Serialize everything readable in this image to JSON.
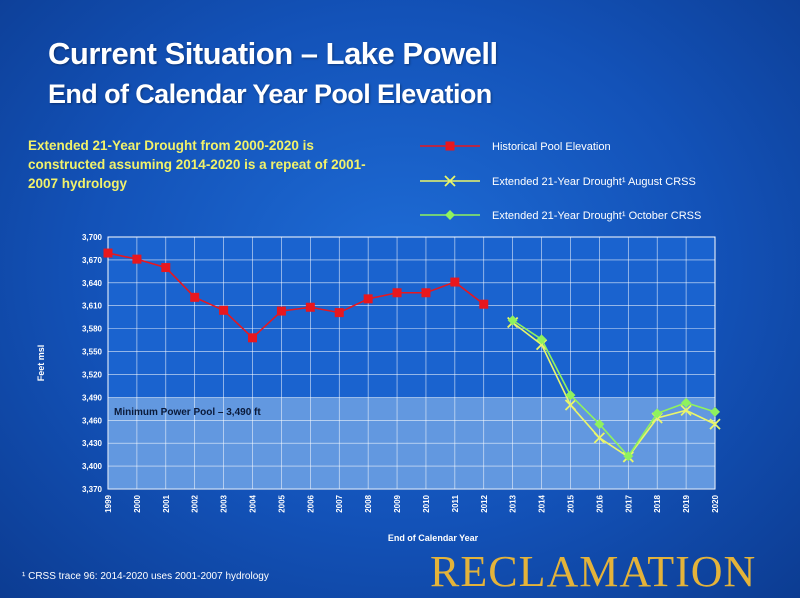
{
  "slide": {
    "title": "Current Situation – Lake Powell",
    "subtitle": "End of Calendar Year Pool Elevation",
    "note": "Extended 21-Year Drought from 2000-2020 is constructed assuming 2014-2020 is a repeat of 2001-2007 hydrology",
    "footnote": "¹ CRSS trace 96: 2014-2020 uses 2001-2007 hydrology",
    "brand": "RECLAMATION"
  },
  "colors": {
    "historical": "#e8171e",
    "august": "#eaf66a",
    "october": "#8ff25e",
    "band": "#9ec4ee",
    "grid": "#ffffff",
    "plot_bg": "#1a63cf"
  },
  "chart_data": {
    "type": "line",
    "xlabel": "End of Calendar Year",
    "ylabel": "Feet msl",
    "ylim": [
      3370,
      3700
    ],
    "yticks": [
      3370,
      3400,
      3430,
      3460,
      3490,
      3520,
      3550,
      3580,
      3610,
      3640,
      3670,
      3700
    ],
    "ytick_labels": [
      "3,370",
      "3,400",
      "3,430",
      "3,460",
      "3,490",
      "3,520",
      "3,550",
      "3,580",
      "3,610",
      "3,640",
      "3,670",
      "3,700"
    ],
    "x": [
      "1999",
      "2000",
      "2001",
      "2002",
      "2003",
      "2004",
      "2005",
      "2006",
      "2007",
      "2008",
      "2009",
      "2010",
      "2011",
      "2012",
      "2013",
      "2014",
      "2015",
      "2016",
      "2017",
      "2018",
      "2019",
      "2020"
    ],
    "grid": true,
    "legend_position": "top-right",
    "series": [
      {
        "name": "Historical Pool Elevation",
        "marker": "square",
        "color": "#e8171e",
        "x": [
          "1999",
          "2000",
          "2001",
          "2002",
          "2003",
          "2004",
          "2005",
          "2006",
          "2007",
          "2008",
          "2009",
          "2010",
          "2011",
          "2012"
        ],
        "values": [
          3679,
          3671,
          3660,
          3621,
          3604,
          3568,
          3603,
          3608,
          3601,
          3619,
          3627,
          3627,
          3641,
          3612
        ]
      },
      {
        "name": "Extended 21-Year Drought¹ August CRSS",
        "marker": "x",
        "color": "#eaf66a",
        "x": [
          "2013",
          "2014",
          "2015",
          "2016",
          "2017",
          "2018",
          "2019",
          "2020"
        ],
        "values": [
          3588,
          3559,
          3480,
          3437,
          3412,
          3463,
          3473,
          3455
        ]
      },
      {
        "name": "Extended 21-Year Drought¹ October CRSS",
        "marker": "diamond",
        "color": "#8ff25e",
        "x": [
          "2013",
          "2014",
          "2015",
          "2016",
          "2017",
          "2018",
          "2019",
          "2020"
        ],
        "values": [
          3591,
          3566,
          3493,
          3455,
          3413,
          3469,
          3483,
          3471
        ]
      }
    ],
    "annotations": [
      {
        "text": "Minimum Power Pool – 3,490 ft",
        "y": 3490
      }
    ]
  }
}
